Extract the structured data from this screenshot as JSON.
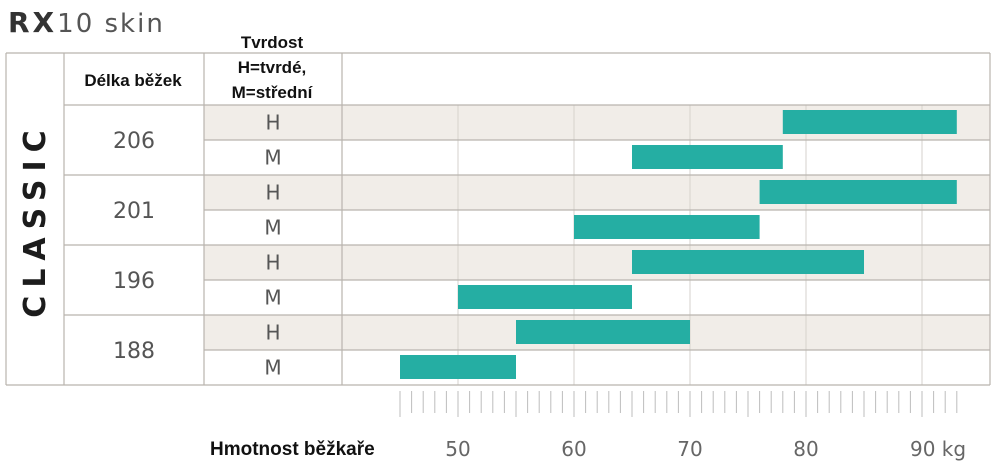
{
  "title": {
    "bold": "RX",
    "light": "10 skin"
  },
  "side_label": "CLASSIC",
  "headers": {
    "length": "Délka běžek",
    "hardness_lines": [
      "Tvrdost",
      "H=tvrdé,",
      "M=střední"
    ]
  },
  "colors": {
    "bar": "#25aea3",
    "band": "#f1ede8",
    "border": "#b9b4ae",
    "grid": "#d6d2cd"
  },
  "chart_data": {
    "type": "bar",
    "orientation": "horizontal-range",
    "xlabel": "Hmotnost běžkaře",
    "x_unit": "kg",
    "xlim": [
      45,
      93
    ],
    "xticks": [
      50,
      60,
      70,
      80,
      90
    ],
    "xtick_labels": [
      "50",
      "60",
      "70",
      "80",
      "90 kg"
    ],
    "grid": true,
    "groups": [
      {
        "length": "206",
        "rows": [
          {
            "hardness": "H",
            "min": 78,
            "max": 93
          },
          {
            "hardness": "M",
            "min": 65,
            "max": 78
          }
        ]
      },
      {
        "length": "201",
        "rows": [
          {
            "hardness": "H",
            "min": 76,
            "max": 93
          },
          {
            "hardness": "M",
            "min": 60,
            "max": 76
          }
        ]
      },
      {
        "length": "196",
        "rows": [
          {
            "hardness": "H",
            "min": 65,
            "max": 85
          },
          {
            "hardness": "M",
            "min": 50,
            "max": 65
          }
        ]
      },
      {
        "length": "188",
        "rows": [
          {
            "hardness": "H",
            "min": 55,
            "max": 70
          },
          {
            "hardness": "M",
            "min": 45,
            "max": 55
          }
        ]
      }
    ]
  }
}
